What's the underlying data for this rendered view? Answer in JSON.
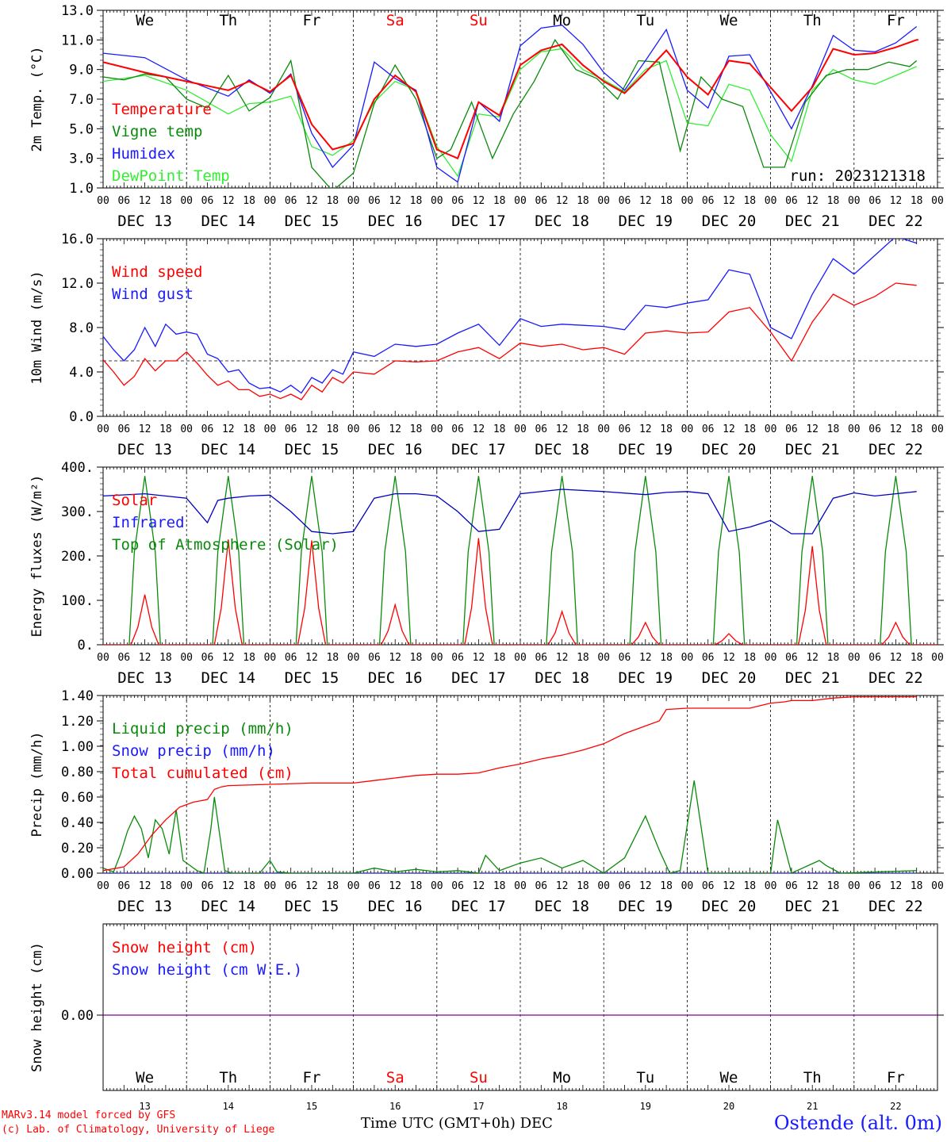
{
  "colors": {
    "red": "#ff0000",
    "green": "#0a8a0a",
    "blue": "#1a1aff",
    "lightgreen": "#33ee33",
    "purple": "#8000a0",
    "darkblue": "#0000c0"
  },
  "footer": {
    "model": "MARv3.14 model forced by GFS",
    "credit": "(c) Lab. of Climatology, University of Liege",
    "axis_title": "Time UTC (GMT+0h)",
    "month": "DEC",
    "station": "Ostende (alt. 0m)"
  },
  "run_label": "run: 2023121318",
  "weekdays": [
    "We",
    "Th",
    "Fr",
    "Sa",
    "Su",
    "Mo",
    "Tu",
    "We",
    "Th",
    "Fr"
  ],
  "weekend_idx": [
    3,
    4
  ],
  "date_labels": [
    "DEC 13",
    "DEC 14",
    "DEC 15",
    "DEC 16",
    "DEC 17",
    "DEC 18",
    "DEC 19",
    "DEC 20",
    "DEC 21",
    "DEC 22"
  ],
  "day_numbers": [
    "13",
    "14",
    "15",
    "16",
    "17",
    "18",
    "19",
    "20",
    "21",
    "22"
  ],
  "hour_ticks": [
    "00",
    "06",
    "12",
    "18"
  ],
  "chart_data": [
    {
      "type": "line",
      "ylabel": "2m Temp. (°C)",
      "ylim": [
        1.0,
        13.0
      ],
      "yticks": [
        "1.0",
        "3.0",
        "5.0",
        "7.0",
        "9.0",
        "11.0",
        "13.0"
      ],
      "x_unit": "hours since DEC 13 00 UTC",
      "grid": "vertical dashed lines at 00 UTC",
      "series": [
        {
          "name": "Temperature",
          "color": "red",
          "x": [
            0,
            12,
            24,
            36,
            42,
            48,
            54,
            60,
            66,
            72,
            78,
            84,
            90,
            96,
            102,
            108,
            114,
            120,
            126,
            132,
            138,
            144,
            150,
            156,
            162,
            168,
            174,
            180,
            186,
            192,
            198,
            204,
            210,
            216,
            222,
            228,
            234,
            234.5
          ],
          "y": [
            9.5,
            8.8,
            8.2,
            7.6,
            8.2,
            7.5,
            8.6,
            5.3,
            3.6,
            4.0,
            7.0,
            8.6,
            7.5,
            3.6,
            3.0,
            6.8,
            5.9,
            9.3,
            10.3,
            10.7,
            9.3,
            8.2,
            7.4,
            8.8,
            10.3,
            8.5,
            7.3,
            9.6,
            9.4,
            7.8,
            6.2,
            7.8,
            10.4,
            10.0,
            10.1,
            10.5,
            11.0,
            11.0
          ]
        },
        {
          "name": "Vigne temp",
          "color": "green",
          "x": [
            0,
            6,
            12,
            18,
            24,
            30,
            36,
            42,
            48,
            54,
            60,
            66,
            72,
            78,
            84,
            90,
            96,
            100,
            106,
            112,
            118,
            124,
            130,
            136,
            142,
            148,
            154,
            160,
            166,
            172,
            178,
            184,
            190,
            196,
            202,
            208,
            214,
            220,
            226,
            232,
            234
          ],
          "y": [
            8.5,
            8.3,
            8.7,
            8.5,
            7.0,
            6.4,
            8.6,
            6.2,
            7.1,
            9.6,
            2.4,
            0.8,
            2.0,
            6.7,
            9.3,
            7.0,
            3.0,
            3.6,
            6.8,
            3.0,
            6.0,
            8.2,
            11.0,
            9.0,
            8.4,
            7.0,
            9.6,
            9.5,
            3.5,
            8.5,
            7.0,
            6.5,
            2.4,
            2.4,
            6.8,
            8.6,
            9.0,
            9.0,
            9.5,
            9.2,
            9.6
          ]
        },
        {
          "name": "Humidex",
          "color": "blue",
          "x": [
            0,
            12,
            24,
            36,
            42,
            48,
            54,
            60,
            66,
            72,
            78,
            84,
            90,
            96,
            102,
            108,
            114,
            120,
            126,
            132,
            138,
            144,
            150,
            156,
            162,
            168,
            174,
            180,
            186,
            192,
            198,
            204,
            210,
            216,
            222,
            228,
            234
          ],
          "y": [
            10.1,
            9.8,
            8.3,
            7.2,
            8.3,
            7.4,
            8.7,
            4.7,
            2.4,
            3.9,
            9.5,
            8.4,
            7.6,
            2.4,
            1.4,
            6.8,
            5.5,
            10.6,
            11.8,
            12.0,
            10.7,
            8.8,
            7.6,
            9.6,
            11.7,
            7.6,
            6.4,
            9.9,
            10.0,
            7.5,
            5.0,
            7.9,
            11.3,
            10.3,
            10.2,
            10.8,
            11.9
          ]
        },
        {
          "name": "DewPoint Temp",
          "color": "lightgreen",
          "x": [
            0,
            12,
            24,
            36,
            42,
            48,
            54,
            60,
            66,
            72,
            78,
            84,
            90,
            96,
            102,
            108,
            114,
            120,
            126,
            132,
            138,
            144,
            150,
            156,
            162,
            168,
            174,
            180,
            186,
            192,
            198,
            204,
            210,
            216,
            222,
            228,
            234
          ],
          "y": [
            8.2,
            8.6,
            7.6,
            6.0,
            6.7,
            6.8,
            7.2,
            3.8,
            3.2,
            4.2,
            6.8,
            8.2,
            7.6,
            3.8,
            1.8,
            6.0,
            5.8,
            9.0,
            10.2,
            10.4,
            9.0,
            8.3,
            7.5,
            9.0,
            9.6,
            5.4,
            5.2,
            8.0,
            7.6,
            4.6,
            2.8,
            7.6,
            9.0,
            8.3,
            8.0,
            8.6,
            9.2
          ]
        }
      ]
    },
    {
      "type": "line",
      "ylabel": "10m Wind (m/s)",
      "ylim": [
        0.0,
        16.0
      ],
      "yticks": [
        "0.0",
        "4.0",
        "8.0",
        "12.0",
        "16.0"
      ],
      "reference_line": 5.0,
      "x_unit": "hours since DEC 13 00 UTC",
      "series": [
        {
          "name": "Wind speed",
          "color": "red",
          "x": [
            0,
            3,
            6,
            9,
            12,
            15,
            18,
            21,
            24,
            27,
            30,
            33,
            36,
            39,
            42,
            45,
            48,
            51,
            54,
            57,
            60,
            63,
            66,
            69,
            72,
            78,
            84,
            90,
            96,
            102,
            108,
            114,
            120,
            126,
            132,
            138,
            144,
            150,
            156,
            162,
            168,
            174,
            180,
            186,
            192,
            198,
            204,
            210,
            216,
            222,
            228,
            234
          ],
          "y": [
            5.1,
            4.0,
            2.8,
            3.6,
            5.2,
            4.1,
            5.0,
            5.0,
            5.8,
            4.8,
            3.7,
            2.8,
            3.2,
            2.4,
            2.4,
            1.8,
            2.0,
            1.6,
            2.0,
            1.5,
            2.8,
            2.2,
            3.5,
            3.0,
            4.0,
            3.8,
            5.0,
            4.9,
            5.0,
            5.8,
            6.2,
            5.2,
            6.6,
            6.3,
            6.5,
            6.0,
            6.2,
            5.6,
            7.5,
            7.7,
            7.5,
            7.6,
            9.4,
            9.8,
            7.6,
            5.0,
            8.5,
            11.0,
            10.0,
            10.8,
            12.0,
            11.8
          ]
        },
        {
          "name": "Wind gust",
          "color": "blue",
          "x": [
            0,
            3,
            6,
            9,
            12,
            15,
            18,
            21,
            24,
            27,
            30,
            33,
            36,
            39,
            42,
            45,
            48,
            51,
            54,
            57,
            60,
            63,
            66,
            69,
            72,
            78,
            84,
            90,
            96,
            102,
            108,
            114,
            120,
            126,
            132,
            138,
            144,
            150,
            156,
            162,
            168,
            174,
            180,
            186,
            192,
            198,
            204,
            210,
            216,
            222,
            228,
            234
          ],
          "y": [
            7.2,
            6.0,
            5.0,
            6.0,
            8.0,
            6.3,
            8.3,
            7.4,
            7.6,
            7.4,
            5.6,
            5.2,
            4.0,
            4.2,
            3.0,
            2.5,
            2.6,
            2.2,
            2.8,
            2.1,
            3.5,
            3.0,
            4.2,
            3.8,
            5.8,
            5.4,
            6.5,
            6.3,
            6.5,
            7.5,
            8.3,
            6.4,
            8.8,
            8.1,
            8.3,
            8.2,
            8.1,
            7.8,
            10.0,
            9.8,
            10.2,
            10.5,
            13.2,
            12.8,
            8.0,
            7.0,
            11.0,
            14.2,
            12.8,
            14.5,
            16.2,
            15.6
          ]
        }
      ]
    },
    {
      "type": "line",
      "ylabel": "Energy fluxes (W/m²)",
      "ylim": [
        0,
        400
      ],
      "yticks": [
        "0.",
        "100.",
        "200.",
        "300.",
        "400."
      ],
      "x_unit": "hours since DEC 13 00 UTC",
      "series": [
        {
          "name": "Solar",
          "color": "red",
          "peaks": [
            113,
            237,
            235,
            90,
            240,
            75,
            50,
            25,
            222,
            50
          ]
        },
        {
          "name": "Infrared",
          "color": "darkblue",
          "x": [
            0,
            12,
            24,
            30,
            33,
            36,
            42,
            48,
            54,
            60,
            66,
            72,
            78,
            84,
            90,
            96,
            102,
            108,
            114,
            120,
            132,
            144,
            156,
            162,
            168,
            174,
            180,
            186,
            192,
            198,
            204,
            210,
            216,
            222,
            228,
            234
          ],
          "y": [
            335,
            340,
            330,
            275,
            325,
            330,
            335,
            337,
            300,
            255,
            250,
            255,
            330,
            340,
            340,
            335,
            300,
            255,
            260,
            340,
            350,
            345,
            338,
            343,
            345,
            340,
            255,
            265,
            280,
            250,
            250,
            330,
            342,
            335,
            340,
            345
          ]
        },
        {
          "name": "Top of Atmosphere (Solar)",
          "color": "green",
          "peak": 380
        }
      ]
    },
    {
      "type": "line",
      "ylabel": "Precip (mm/h)",
      "ylim": [
        0.0,
        1.4
      ],
      "yticks": [
        "0.00",
        "0.20",
        "0.40",
        "0.60",
        "0.80",
        "1.00",
        "1.20",
        "1.40"
      ],
      "x_unit": "hours since DEC 13 00 UTC",
      "series": [
        {
          "name": "Liquid precip (mm/h)",
          "color": "green",
          "x": [
            0,
            3,
            5,
            7,
            9,
            11,
            13,
            15,
            17,
            19,
            21,
            23,
            25,
            27,
            29,
            31,
            32,
            35,
            37,
            39,
            45,
            48,
            50,
            54,
            60,
            66,
            72,
            78,
            84,
            90,
            96,
            102,
            108,
            110,
            114,
            120,
            126,
            132,
            138,
            144,
            150,
            156,
            160,
            163,
            166,
            170,
            174,
            178,
            180,
            184,
            192,
            194,
            198,
            206,
            208,
            212,
            234
          ],
          "y": [
            0.04,
            0.01,
            0.15,
            0.33,
            0.45,
            0.35,
            0.12,
            0.42,
            0.35,
            0.15,
            0.5,
            0.1,
            0.06,
            0.02,
            0.0,
            0.35,
            0.6,
            0.02,
            0.0,
            0.0,
            0.0,
            0.1,
            0.01,
            0.0,
            0.0,
            0.0,
            0.0,
            0.04,
            0.01,
            0.03,
            0.01,
            0.02,
            0.0,
            0.14,
            0.02,
            0.08,
            0.12,
            0.04,
            0.1,
            0.0,
            0.12,
            0.45,
            0.18,
            0.0,
            0.02,
            0.73,
            0.0,
            0.0,
            0.0,
            0.0,
            0.0,
            0.42,
            0.0,
            0.1,
            0.06,
            0.0,
            0.02
          ]
        },
        {
          "name": "Snow precip (mm/h)",
          "color": "blue",
          "x": [
            0,
            234
          ],
          "y": [
            0.0,
            0.0
          ]
        },
        {
          "name": "Total cumulated (cm)",
          "color": "red",
          "x": [
            0,
            6,
            10,
            14,
            18,
            22,
            26,
            30,
            32,
            34,
            36,
            48,
            60,
            72,
            78,
            84,
            90,
            96,
            102,
            108,
            114,
            120,
            126,
            132,
            138,
            144,
            150,
            156,
            160,
            162,
            168,
            174,
            180,
            186,
            192,
            196,
            198,
            204,
            210,
            216,
            222,
            228,
            234
          ],
          "y": [
            0.02,
            0.05,
            0.15,
            0.3,
            0.42,
            0.52,
            0.56,
            0.58,
            0.66,
            0.68,
            0.69,
            0.7,
            0.71,
            0.71,
            0.73,
            0.75,
            0.77,
            0.78,
            0.78,
            0.79,
            0.83,
            0.86,
            0.9,
            0.93,
            0.97,
            1.02,
            1.1,
            1.16,
            1.2,
            1.29,
            1.3,
            1.3,
            1.3,
            1.3,
            1.34,
            1.35,
            1.36,
            1.36,
            1.38,
            1.39,
            1.39,
            1.39,
            1.39
          ]
        }
      ]
    },
    {
      "type": "line",
      "ylabel": "Snow height (cm)",
      "yticks": [
        "0.00"
      ],
      "x_unit": "hours since DEC 13 00 UTC",
      "series": [
        {
          "name": "Snow height (cm)",
          "color": "red",
          "x": [
            0,
            234
          ],
          "y": [
            0.0,
            0.0
          ]
        },
        {
          "name": "Snow height (cm W.E.)",
          "color": "blue",
          "x": [
            0,
            234
          ],
          "y": [
            0.0,
            0.0
          ]
        }
      ]
    }
  ]
}
